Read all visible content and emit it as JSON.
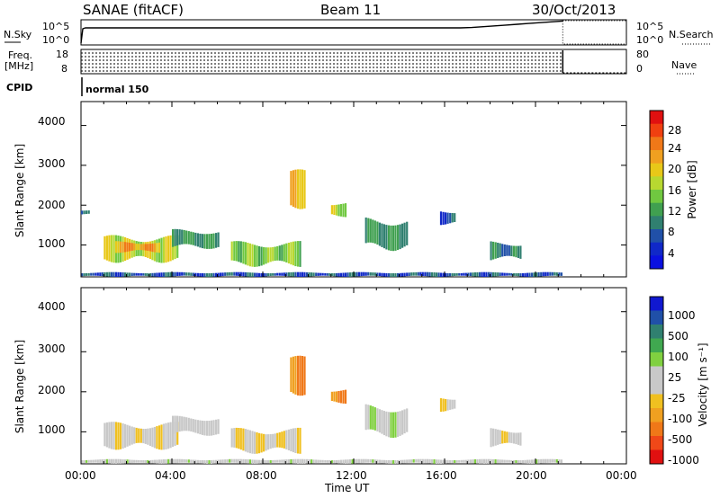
{
  "header": {
    "radar": "SANAE (fitACF)",
    "beam": "Beam 11",
    "date": "30/Oct/2013"
  },
  "strip": {
    "nsky_label": "N.Sky",
    "nsky_top": "10^5",
    "nsky_bottom": "10^0",
    "nsearch_label": "N.Search",
    "nsearch_top": "10^5",
    "nsearch_bottom": "10^0",
    "freq_label_1": "Freq.",
    "freq_label_2": "[MHz]",
    "freq_top": "18",
    "freq_bottom": "8",
    "nave_label": "Nave",
    "nave_top": "80",
    "nave_bottom": "0",
    "cpid_label": "CPID",
    "cpid_value": "normal 150"
  },
  "axes": {
    "ylabel": "Slant Range [km]",
    "xlabel": "Time UT",
    "y_ticks": [
      "4000",
      "3000",
      "2000",
      "1000"
    ],
    "x_ticks": [
      "00:00",
      "04:00",
      "08:00",
      "12:00",
      "16:00",
      "20:00",
      "00:00"
    ]
  },
  "power_colorbar": {
    "label": "Power [dB]",
    "ticks": [
      "28",
      "24",
      "20",
      "16",
      "12",
      "8",
      "4"
    ],
    "colors": [
      "#e01010",
      "#f04010",
      "#f07818",
      "#f0a020",
      "#e8c818",
      "#b8d830",
      "#70c840",
      "#40a050",
      "#308070",
      "#2050a8",
      "#1028c8",
      "#0a10e0"
    ]
  },
  "velocity_colorbar": {
    "label": "Velocity [m s⁻¹]",
    "ticks": [
      "1000",
      "500",
      "100",
      "25",
      "-25",
      "-100",
      "-500",
      "-1000"
    ],
    "colors": [
      "#1018d0",
      "#2050a8",
      "#308070",
      "#40a850",
      "#80d040",
      "#c8c8c8",
      "#c8c8c8",
      "#f0c020",
      "#f0a020",
      "#f07818",
      "#f04818",
      "#e01010"
    ]
  },
  "chart_data": {
    "type": "heatmap",
    "title": "SANAE (fitACF)  Beam 11  30/Oct/2013",
    "xlabel": "Time UT",
    "ylabel": "Slant Range [km]",
    "xlim": [
      0,
      24
    ],
    "ylim": [
      200,
      4600
    ],
    "panels": [
      {
        "name": "Power [dB]",
        "range": [
          0,
          30
        ],
        "regions": [
          {
            "t": [
              0.0,
              0.4
            ],
            "r": [
              1750,
              1900
            ],
            "v": 6
          },
          {
            "t": [
              1.0,
              4.3
            ],
            "r": [
              550,
              1250
            ],
            "v": 16
          },
          {
            "t": [
              1.5,
              3.5
            ],
            "r": [
              800,
              1100
            ],
            "v": 22
          },
          {
            "t": [
              4.0,
              6.0
            ],
            "r": [
              900,
              1400
            ],
            "v": 10
          },
          {
            "t": [
              6.6,
              9.6
            ],
            "r": [
              450,
              1100
            ],
            "v": 14
          },
          {
            "t": [
              9.2,
              9.8
            ],
            "r": [
              1900,
              2900
            ],
            "v": 20
          },
          {
            "t": [
              11.0,
              11.6
            ],
            "r": [
              1700,
              2100
            ],
            "v": 16
          },
          {
            "t": [
              12.5,
              14.3
            ],
            "r": [
              850,
              1700
            ],
            "v": 10
          },
          {
            "t": [
              15.8,
              16.5
            ],
            "r": [
              1500,
              1900
            ],
            "v": 6
          },
          {
            "t": [
              18.0,
              19.4
            ],
            "r": [
              600,
              1100
            ],
            "v": 8
          },
          {
            "t": [
              0.0,
              21.2
            ],
            "r": [
              200,
              320
            ],
            "v": 6
          }
        ]
      },
      {
        "name": "Velocity [m s⁻¹]",
        "range": [
          -1000,
          1000
        ],
        "regions": [
          {
            "t": [
              1.0,
              4.3
            ],
            "r": [
              550,
              1250
            ],
            "v": -100
          },
          {
            "t": [
              4.0,
              6.0
            ],
            "r": [
              900,
              1400
            ],
            "v": 0
          },
          {
            "t": [
              6.6,
              9.6
            ],
            "r": [
              450,
              1100
            ],
            "v": -100
          },
          {
            "t": [
              9.2,
              9.8
            ],
            "r": [
              1900,
              2900
            ],
            "v": -500
          },
          {
            "t": [
              11.0,
              11.6
            ],
            "r": [
              1700,
              2100
            ],
            "v": -500
          },
          {
            "t": [
              12.5,
              14.3
            ],
            "r": [
              850,
              1700
            ],
            "v": 100
          },
          {
            "t": [
              15.8,
              16.5
            ],
            "r": [
              1500,
              1900
            ],
            "v": -100
          },
          {
            "t": [
              18.0,
              19.4
            ],
            "r": [
              600,
              1100
            ],
            "v": -100
          },
          {
            "t": [
              0.0,
              21.2
            ],
            "r": [
              200,
              320
            ],
            "v": 25
          }
        ]
      }
    ],
    "grid": false
  }
}
